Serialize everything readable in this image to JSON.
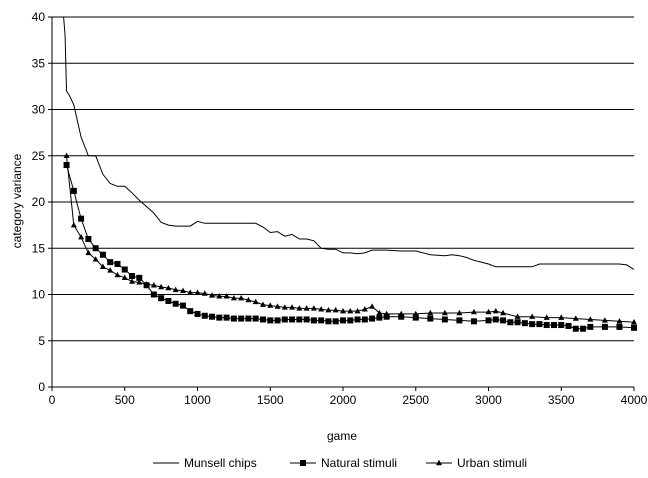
{
  "chart_data": {
    "type": "line",
    "title": "",
    "xlabel": "game",
    "ylabel": "category variance",
    "xlim": [
      0,
      4000
    ],
    "ylim": [
      0,
      40
    ],
    "x_ticks": [
      0,
      500,
      1000,
      1500,
      2000,
      2500,
      3000,
      3500,
      4000
    ],
    "y_ticks": [
      0,
      5,
      10,
      15,
      20,
      25,
      30,
      35,
      40
    ],
    "grid": "horizontal",
    "legend_position": "bottom",
    "series": [
      {
        "name": "Munsell chips",
        "color": "#000000",
        "marker": "none",
        "points": [
          [
            80,
            40
          ],
          [
            90,
            38
          ],
          [
            100,
            32
          ],
          [
            120,
            31.5
          ],
          [
            150,
            30.5
          ],
          [
            200,
            27
          ],
          [
            250,
            25
          ],
          [
            300,
            25
          ],
          [
            350,
            23
          ],
          [
            400,
            22
          ],
          [
            450,
            21.7
          ],
          [
            500,
            21.7
          ],
          [
            550,
            21
          ],
          [
            600,
            20.2
          ],
          [
            650,
            19.5
          ],
          [
            700,
            18.8
          ],
          [
            750,
            17.8
          ],
          [
            800,
            17.5
          ],
          [
            850,
            17.4
          ],
          [
            900,
            17.4
          ],
          [
            950,
            17.4
          ],
          [
            1000,
            17.9
          ],
          [
            1050,
            17.7
          ],
          [
            1100,
            17.7
          ],
          [
            1200,
            17.7
          ],
          [
            1300,
            17.7
          ],
          [
            1400,
            17.7
          ],
          [
            1450,
            17.3
          ],
          [
            1500,
            16.7
          ],
          [
            1550,
            16.8
          ],
          [
            1600,
            16.3
          ],
          [
            1650,
            16.5
          ],
          [
            1700,
            16
          ],
          [
            1750,
            16
          ],
          [
            1800,
            15.8
          ],
          [
            1850,
            15
          ],
          [
            1900,
            14.9
          ],
          [
            1950,
            14.9
          ],
          [
            2000,
            14.5
          ],
          [
            2050,
            14.5
          ],
          [
            2100,
            14.4
          ],
          [
            2150,
            14.5
          ],
          [
            2200,
            14.8
          ],
          [
            2300,
            14.8
          ],
          [
            2400,
            14.7
          ],
          [
            2500,
            14.7
          ],
          [
            2600,
            14.3
          ],
          [
            2700,
            14.2
          ],
          [
            2750,
            14.3
          ],
          [
            2800,
            14.2
          ],
          [
            2850,
            14
          ],
          [
            2900,
            13.7
          ],
          [
            2950,
            13.5
          ],
          [
            3000,
            13.3
          ],
          [
            3050,
            13
          ],
          [
            3100,
            13
          ],
          [
            3200,
            13
          ],
          [
            3300,
            13
          ],
          [
            3350,
            13.3
          ],
          [
            3400,
            13.3
          ],
          [
            3500,
            13.3
          ],
          [
            3600,
            13.3
          ],
          [
            3700,
            13.3
          ],
          [
            3800,
            13.3
          ],
          [
            3900,
            13.3
          ],
          [
            3950,
            13.2
          ],
          [
            4000,
            12.7
          ]
        ]
      },
      {
        "name": "Natural stimuli",
        "color": "#000000",
        "marker": "square",
        "points": [
          [
            100,
            24
          ],
          [
            150,
            21.2
          ],
          [
            200,
            18.2
          ],
          [
            250,
            16
          ],
          [
            300,
            15
          ],
          [
            350,
            14.3
          ],
          [
            400,
            13.5
          ],
          [
            450,
            13.3
          ],
          [
            500,
            12.7
          ],
          [
            550,
            12
          ],
          [
            600,
            11.8
          ],
          [
            650,
            11
          ],
          [
            700,
            10
          ],
          [
            750,
            9.6
          ],
          [
            800,
            9.3
          ],
          [
            850,
            9
          ],
          [
            900,
            8.8
          ],
          [
            950,
            8.2
          ],
          [
            1000,
            7.9
          ],
          [
            1050,
            7.7
          ],
          [
            1100,
            7.6
          ],
          [
            1150,
            7.5
          ],
          [
            1200,
            7.5
          ],
          [
            1250,
            7.4
          ],
          [
            1300,
            7.4
          ],
          [
            1350,
            7.4
          ],
          [
            1400,
            7.4
          ],
          [
            1450,
            7.3
          ],
          [
            1500,
            7.2
          ],
          [
            1550,
            7.2
          ],
          [
            1600,
            7.3
          ],
          [
            1650,
            7.3
          ],
          [
            1700,
            7.3
          ],
          [
            1750,
            7.3
          ],
          [
            1800,
            7.2
          ],
          [
            1850,
            7.2
          ],
          [
            1900,
            7.1
          ],
          [
            1950,
            7.1
          ],
          [
            2000,
            7.2
          ],
          [
            2050,
            7.2
          ],
          [
            2100,
            7.3
          ],
          [
            2150,
            7.3
          ],
          [
            2200,
            7.4
          ],
          [
            2250,
            7.5
          ],
          [
            2300,
            7.6
          ],
          [
            2400,
            7.6
          ],
          [
            2500,
            7.5
          ],
          [
            2600,
            7.4
          ],
          [
            2700,
            7.3
          ],
          [
            2800,
            7.2
          ],
          [
            2900,
            7.1
          ],
          [
            3000,
            7.2
          ],
          [
            3050,
            7.3
          ],
          [
            3100,
            7.2
          ],
          [
            3150,
            7
          ],
          [
            3200,
            7
          ],
          [
            3250,
            6.9
          ],
          [
            3300,
            6.8
          ],
          [
            3350,
            6.8
          ],
          [
            3400,
            6.7
          ],
          [
            3450,
            6.7
          ],
          [
            3500,
            6.7
          ],
          [
            3550,
            6.6
          ],
          [
            3600,
            6.3
          ],
          [
            3650,
            6.3
          ],
          [
            3700,
            6.5
          ],
          [
            3800,
            6.5
          ],
          [
            3900,
            6.5
          ],
          [
            4000,
            6.4
          ]
        ]
      },
      {
        "name": "Urban stimuli",
        "color": "#000000",
        "marker": "triangle",
        "points": [
          [
            100,
            25
          ],
          [
            150,
            17.5
          ],
          [
            200,
            16.2
          ],
          [
            250,
            14.5
          ],
          [
            300,
            13.8
          ],
          [
            350,
            13
          ],
          [
            400,
            12.6
          ],
          [
            450,
            12.1
          ],
          [
            500,
            11.8
          ],
          [
            550,
            11.4
          ],
          [
            600,
            11.3
          ],
          [
            650,
            11.1
          ],
          [
            700,
            11
          ],
          [
            750,
            10.8
          ],
          [
            800,
            10.7
          ],
          [
            850,
            10.5
          ],
          [
            900,
            10.4
          ],
          [
            950,
            10.2
          ],
          [
            1000,
            10.2
          ],
          [
            1050,
            10.1
          ],
          [
            1100,
            9.9
          ],
          [
            1150,
            9.8
          ],
          [
            1200,
            9.8
          ],
          [
            1250,
            9.6
          ],
          [
            1300,
            9.6
          ],
          [
            1350,
            9.4
          ],
          [
            1400,
            9.2
          ],
          [
            1450,
            8.9
          ],
          [
            1500,
            8.8
          ],
          [
            1550,
            8.7
          ],
          [
            1600,
            8.6
          ],
          [
            1650,
            8.6
          ],
          [
            1700,
            8.5
          ],
          [
            1750,
            8.5
          ],
          [
            1800,
            8.5
          ],
          [
            1850,
            8.4
          ],
          [
            1900,
            8.3
          ],
          [
            1950,
            8.3
          ],
          [
            2000,
            8.2
          ],
          [
            2050,
            8.2
          ],
          [
            2100,
            8.2
          ],
          [
            2150,
            8.4
          ],
          [
            2200,
            8.7
          ],
          [
            2250,
            8
          ],
          [
            2300,
            7.9
          ],
          [
            2400,
            7.9
          ],
          [
            2500,
            7.9
          ],
          [
            2600,
            8
          ],
          [
            2700,
            8
          ],
          [
            2800,
            8
          ],
          [
            2900,
            8.1
          ],
          [
            3000,
            8.1
          ],
          [
            3050,
            8.2
          ],
          [
            3100,
            8
          ],
          [
            3200,
            7.6
          ],
          [
            3300,
            7.6
          ],
          [
            3400,
            7.5
          ],
          [
            3500,
            7.5
          ],
          [
            3600,
            7.4
          ],
          [
            3700,
            7.3
          ],
          [
            3800,
            7.2
          ],
          [
            3900,
            7.1
          ],
          [
            4000,
            7
          ]
        ]
      }
    ]
  }
}
